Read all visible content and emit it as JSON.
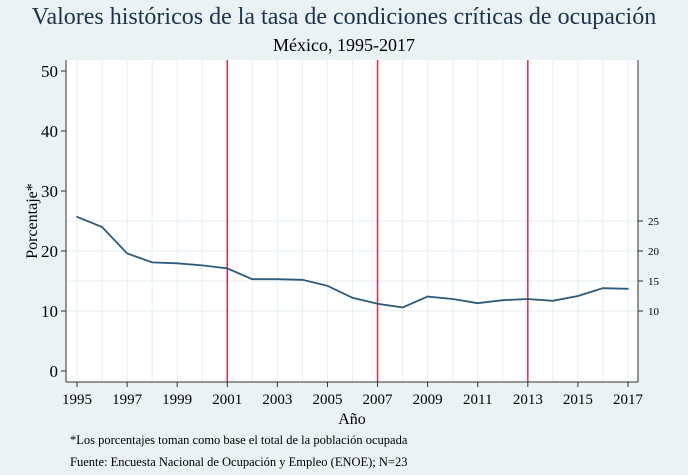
{
  "chart_data": {
    "type": "line",
    "title": "Valores históricos de la tasa de condiciones críticas de ocupación",
    "subtitle": "México, 1995-2017",
    "xlabel": "Año",
    "ylabel": "Porcentaje*",
    "x": [
      1995,
      1996,
      1997,
      1998,
      1999,
      2000,
      2001,
      2002,
      2003,
      2004,
      2005,
      2006,
      2007,
      2008,
      2009,
      2010,
      2011,
      2012,
      2013,
      2014,
      2015,
      2016,
      2017
    ],
    "series": [
      {
        "name": "Tasa de condiciones críticas de ocupación",
        "color": "#2f5b7c",
        "values": [
          25.7,
          24.0,
          19.6,
          18.1,
          17.95,
          17.6,
          17.1,
          15.3,
          15.3,
          15.2,
          14.2,
          12.2,
          11.2,
          10.6,
          12.4,
          12.0,
          11.3,
          11.8,
          12.0,
          11.7,
          12.5,
          13.8,
          13.7
        ]
      }
    ],
    "xticks": [
      "1995",
      "1997",
      "1999",
      "2001",
      "2003",
      "2005",
      "2007",
      "2009",
      "2011",
      "2013",
      "2015",
      "2017"
    ],
    "yticks_left": [
      "0",
      "10",
      "20",
      "30",
      "40",
      "50"
    ],
    "yticks_right": [
      "10",
      "15",
      "20",
      "25"
    ],
    "ylim": [
      0,
      50
    ],
    "xlim": [
      1995,
      2017
    ],
    "reference_lines": {
      "years": [
        2001,
        2007,
        2013
      ],
      "color": "#e0284e"
    },
    "grid": true,
    "notes": [
      "*Los porcentajes toman como base el total de la población ocupada",
      "Fuente: Encuesta Nacional de Ocupación y Empleo (ENOE); N=23"
    ]
  }
}
